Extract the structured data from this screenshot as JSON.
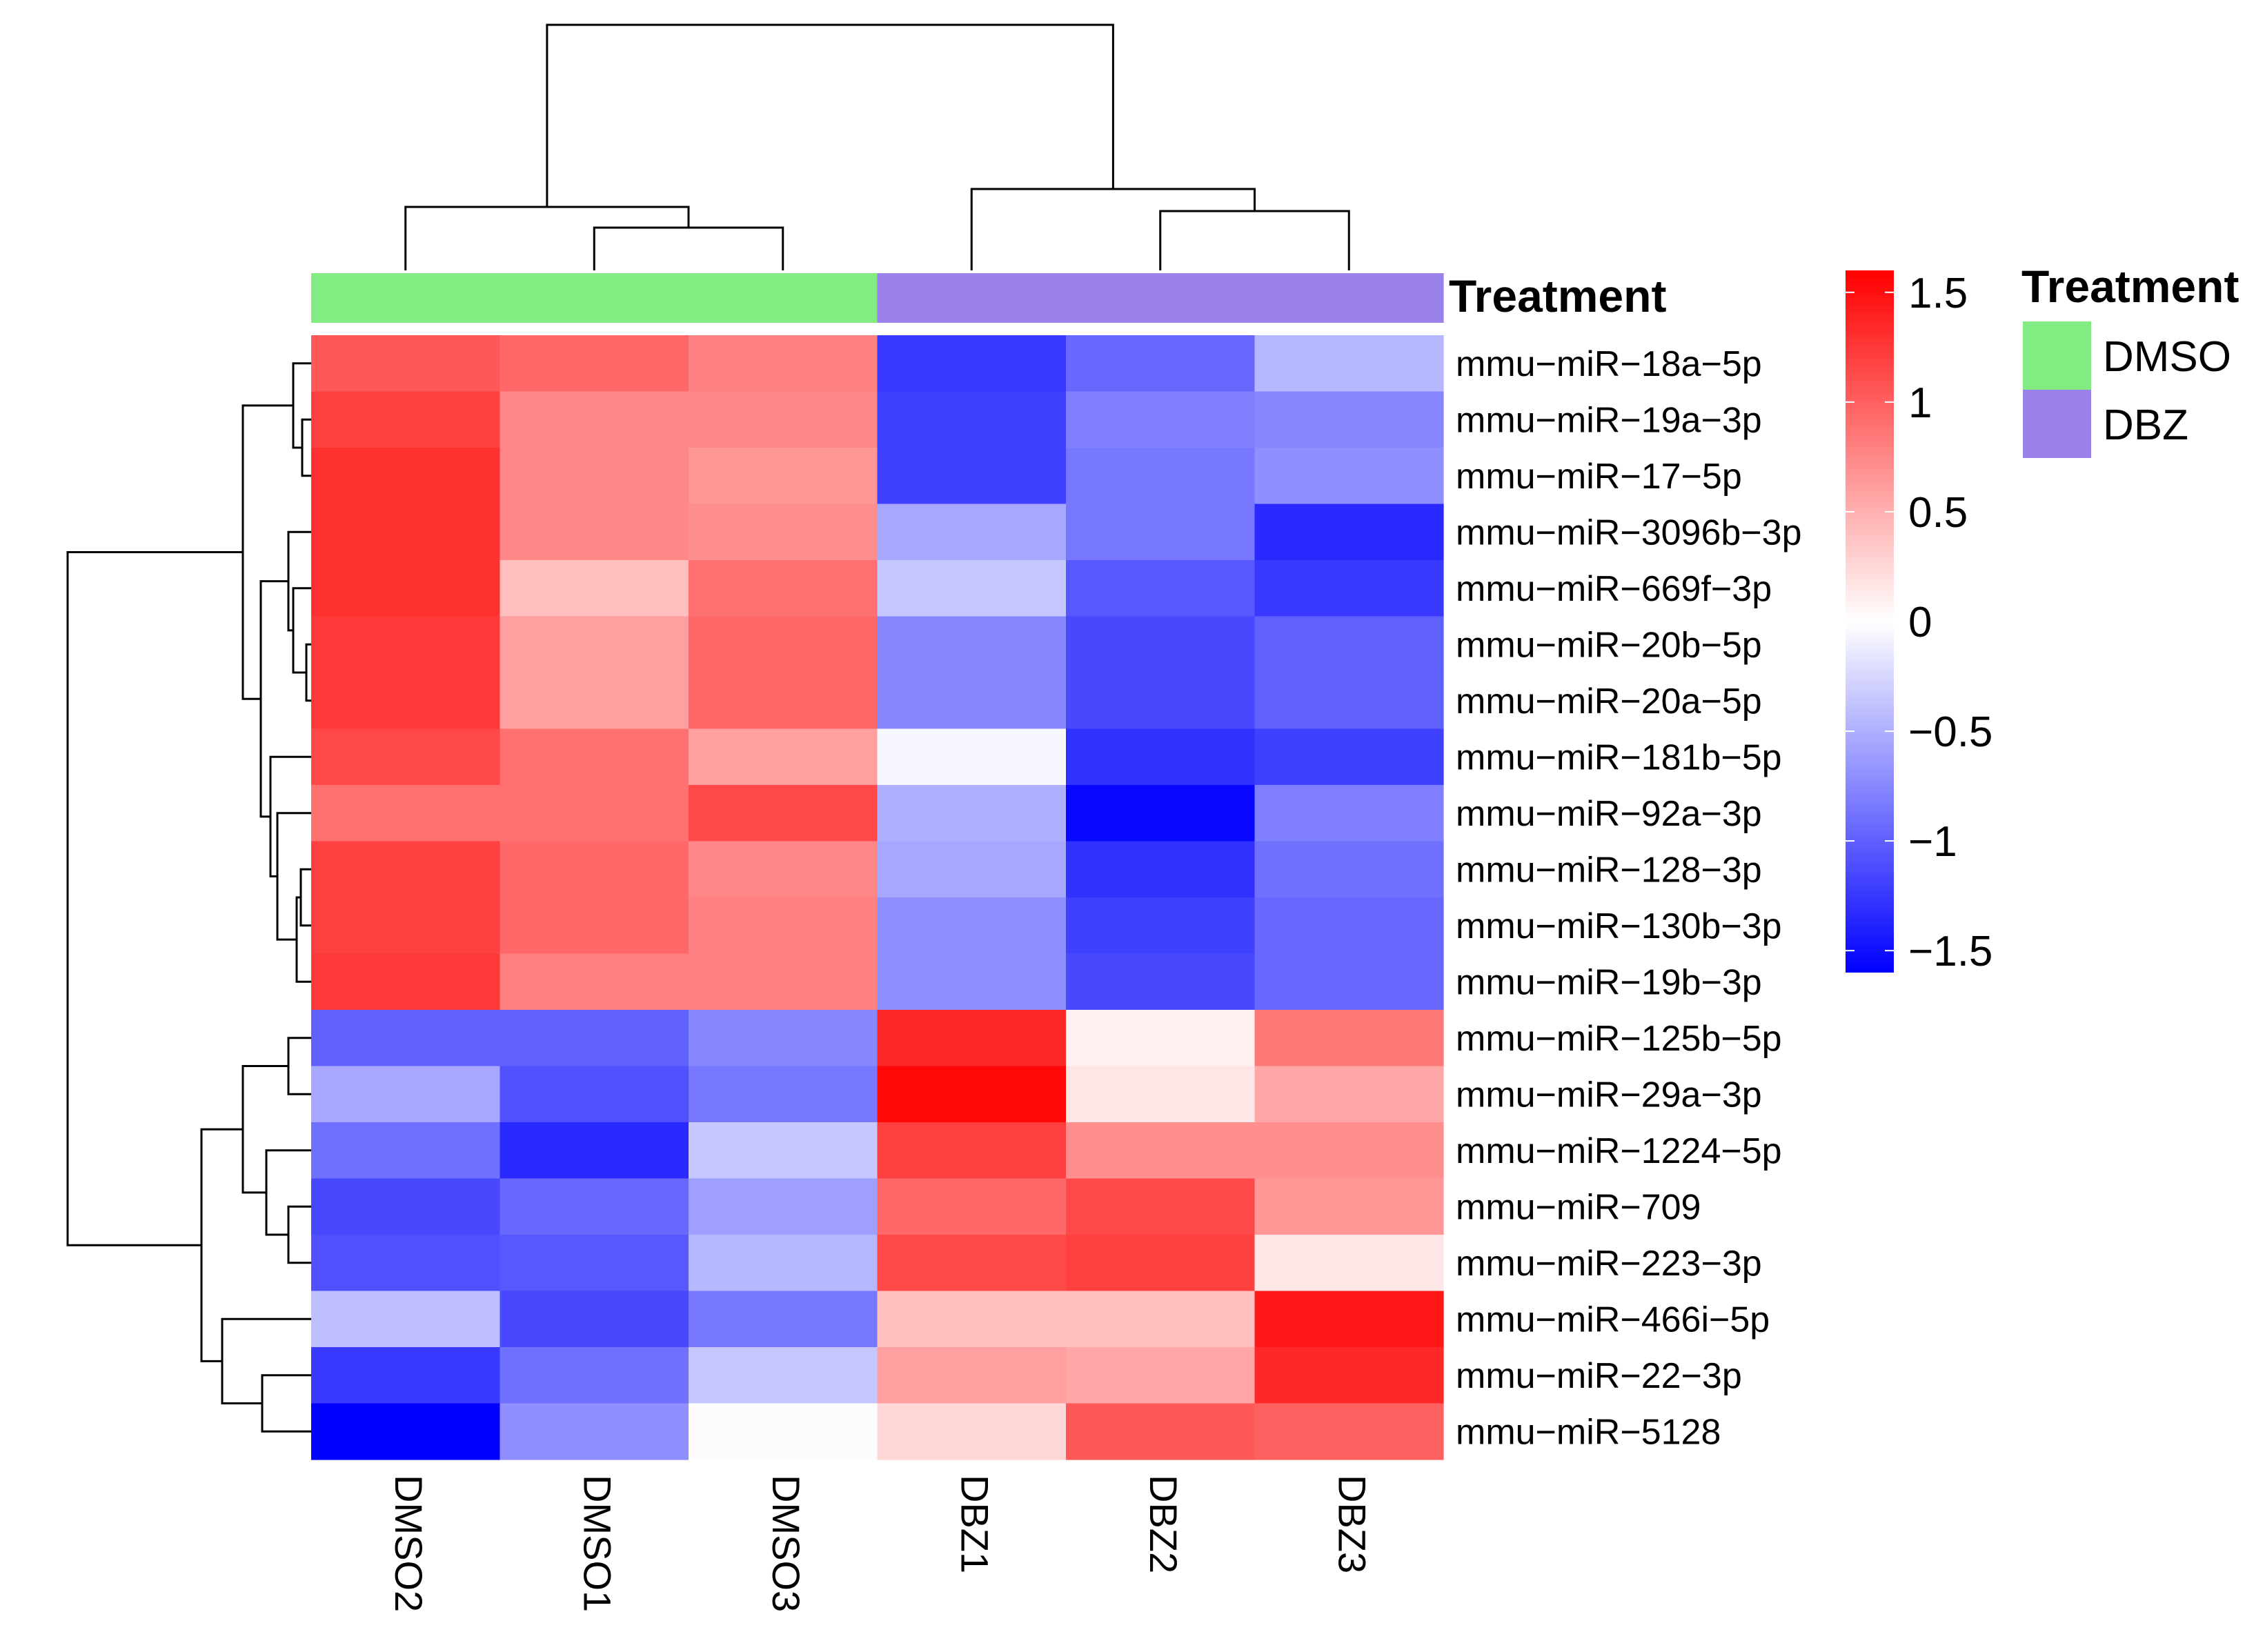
{
  "chart_data": {
    "type": "heatmap",
    "columns": [
      "DMSO2",
      "DMSO1",
      "DMSO3",
      "DBZ1",
      "DBZ2",
      "DBZ3"
    ],
    "rows": [
      "mmu−miR−18a−5p",
      "mmu−miR−19a−3p",
      "mmu−miR−17−5p",
      "mmu−miR−3096b−3p",
      "mmu−miR−669f−3p",
      "mmu−miR−20b−5p",
      "mmu−miR−20a−5p",
      "mmu−miR−181b−5p",
      "mmu−miR−92a−3p",
      "mmu−miR−128−3p",
      "mmu−miR−130b−3p",
      "mmu−miR−19b−3p",
      "mmu−miR−125b−5p",
      "mmu−miR−29a−3p",
      "mmu−miR−1224−5p",
      "mmu−miR−709",
      "mmu−miR−223−3p",
      "mmu−miR−466i−5p",
      "mmu−miR−22−3p",
      "mmu−miR−5128"
    ],
    "values": [
      [
        1.05,
        0.95,
        0.8,
        -1.25,
        -0.95,
        -0.45
      ],
      [
        1.2,
        0.75,
        0.75,
        -1.2,
        -0.8,
        -0.75
      ],
      [
        1.3,
        0.75,
        0.65,
        -1.2,
        -0.85,
        -0.7
      ],
      [
        1.3,
        0.75,
        0.7,
        -0.55,
        -0.85,
        -1.35
      ],
      [
        1.3,
        0.4,
        0.9,
        -0.35,
        -1.05,
        -1.25
      ],
      [
        1.25,
        0.6,
        0.95,
        -0.75,
        -1.15,
        -1.0
      ],
      [
        1.25,
        0.6,
        0.95,
        -0.75,
        -1.15,
        -1.0
      ],
      [
        1.15,
        0.9,
        0.6,
        -0.05,
        -1.3,
        -1.2
      ],
      [
        0.9,
        0.9,
        1.15,
        -0.5,
        -1.55,
        -0.8
      ],
      [
        1.2,
        0.95,
        0.75,
        -0.55,
        -1.3,
        -0.9
      ],
      [
        1.2,
        0.95,
        0.8,
        -0.7,
        -1.2,
        -0.95
      ],
      [
        1.25,
        0.8,
        0.8,
        -0.7,
        -1.15,
        -0.95
      ],
      [
        -1.0,
        -1.0,
        -0.75,
        1.35,
        0.1,
        0.85
      ],
      [
        -0.55,
        -1.1,
        -0.85,
        1.55,
        0.15,
        0.55
      ],
      [
        -0.9,
        -1.35,
        -0.35,
        1.2,
        0.7,
        0.7
      ],
      [
        -1.15,
        -0.95,
        -0.6,
        0.95,
        1.15,
        0.65
      ],
      [
        -1.1,
        -1.05,
        -0.45,
        1.15,
        1.2,
        0.15
      ],
      [
        -0.4,
        -1.15,
        -0.85,
        0.4,
        0.4,
        1.45
      ],
      [
        -1.25,
        -0.9,
        -0.35,
        0.6,
        0.55,
        1.35
      ],
      [
        -1.6,
        -0.7,
        -0.02,
        0.25,
        1.05,
        1.0
      ]
    ],
    "color_scale": {
      "low": "#0000FF",
      "mid": "#FFFFFF",
      "high": "#FF0000",
      "min": -1.6,
      "max": 1.6,
      "ticks": [
        1.5,
        1,
        0.5,
        0,
        -0.5,
        -1,
        -1.5
      ],
      "tick_labels": [
        "1.5",
        "1",
        "0.5",
        "0",
        "−0.5",
        "−1",
        "−1.5"
      ]
    },
    "annotation": {
      "title": "Treatment",
      "groups": [
        "DMSO",
        "DMSO",
        "DMSO",
        "DBZ",
        "DBZ",
        "DBZ"
      ],
      "legend": [
        {
          "label": "DMSO",
          "color": "#82EB82"
        },
        {
          "label": "DBZ",
          "color": "#9B82EB"
        }
      ]
    }
  }
}
